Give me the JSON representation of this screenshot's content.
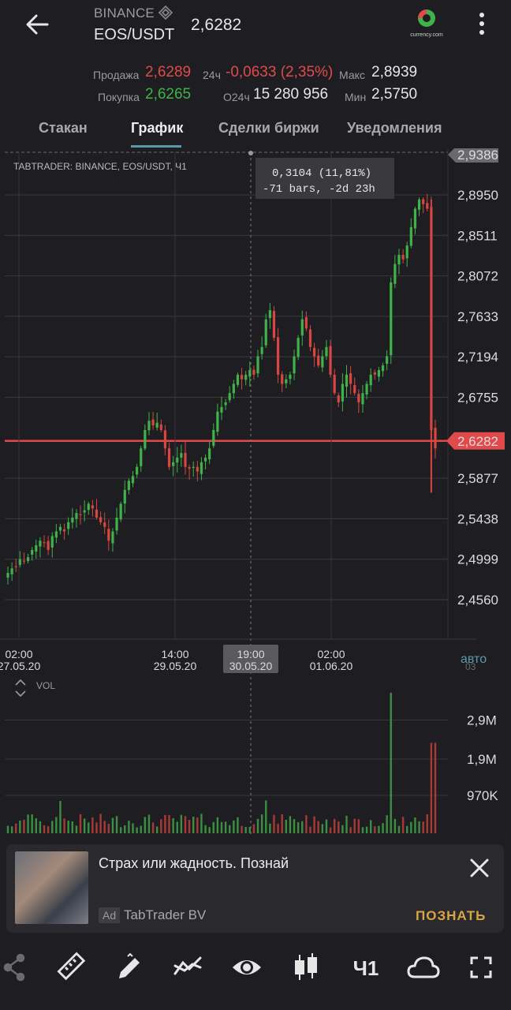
{
  "header": {
    "exchange": "BINANCE",
    "pair": "EOS/USDT",
    "price": "2,6282",
    "logo_text": "currency.com"
  },
  "stats": {
    "sell_label": "Продажа",
    "sell_value": "2,6289",
    "buy_label": "Покупка",
    "buy_value": "2,6265",
    "change_label": "24ч",
    "change_value": "-0,0633 (2,35%)",
    "volume_label": "О24ч",
    "volume_value": "15 280 956",
    "max_label": "Макс",
    "max_value": "2,8939",
    "min_label": "Мин",
    "min_value": "2,5750"
  },
  "tabs": [
    {
      "label": "Стакан"
    },
    {
      "label": "График"
    },
    {
      "label": "Сделки биржи"
    },
    {
      "label": "Уведомления"
    }
  ],
  "chart_data": {
    "type": "candlestick",
    "title": "TABTRADER: BINANCE, EOS/USDT, Ч1",
    "y_ticks": [
      "2,9386",
      "2,8950",
      "2,8511",
      "2,8072",
      "2,7633",
      "2,7194",
      "2,6755",
      "2,6282",
      "2,5877",
      "2,5438",
      "2,4999",
      "2,4560"
    ],
    "ylim": [
      2.43,
      2.94
    ],
    "current_price": "2,6282",
    "x_ticks": [
      {
        "time": "02:00",
        "date": "27.05.20"
      },
      {
        "time": "14:00",
        "date": "29.05.20"
      },
      {
        "time": "19:00",
        "date": "30.05.20"
      },
      {
        "time": "02:00",
        "date": "01.06.20"
      }
    ],
    "auto_label": "авто",
    "cut_label": "03",
    "measure_line1": "0,3104 (11,81%)",
    "measure_line2": "-71 bars, -2d 23h",
    "close_series": [
      2.485,
      2.49,
      2.492,
      2.5,
      2.498,
      2.502,
      2.51,
      2.515,
      2.52,
      2.518,
      2.51,
      2.525,
      2.53,
      2.535,
      2.53,
      2.54,
      2.545,
      2.55,
      2.548,
      2.553,
      2.56,
      2.555,
      2.545,
      2.54,
      2.535,
      2.52,
      2.53,
      2.545,
      2.56,
      2.575,
      2.585,
      2.59,
      2.6,
      2.62,
      2.64,
      2.65,
      2.645,
      2.648,
      2.64,
      2.62,
      2.6,
      2.605,
      2.61,
      2.615,
      2.6,
      2.598,
      2.6,
      2.595,
      2.605,
      2.61,
      2.62,
      2.64,
      2.66,
      2.665,
      2.67,
      2.68,
      2.69,
      2.7,
      2.695,
      2.7,
      2.705,
      2.7,
      2.72,
      2.73,
      2.76,
      2.77,
      2.74,
      2.7,
      2.69,
      2.695,
      2.7,
      2.72,
      2.74,
      2.76,
      2.75,
      2.73,
      2.72,
      2.71,
      2.72,
      2.73,
      2.7,
      2.68,
      2.67,
      2.69,
      2.7,
      2.69,
      2.68,
      2.67,
      2.68,
      2.69,
      2.7,
      2.7,
      2.705,
      2.71,
      2.72,
      2.8,
      2.82,
      2.83,
      2.825,
      2.84,
      2.86,
      2.88,
      2.89,
      2.885,
      2.88,
      2.64,
      2.62
    ],
    "volume_labels": [
      "2,9M",
      "1,9M",
      "970K"
    ],
    "volume_label": "VOL"
  },
  "ad": {
    "text": "Страх или жадность. Познай",
    "tag": "Ad",
    "company": "TabTrader BV",
    "cta": "ПОЗНАТЬ"
  },
  "bottom_icons": [
    "share-icon",
    "ruler-icon",
    "pencil-icon",
    "indicator-icon",
    "eye-icon",
    "candles-icon",
    "timeframe-icon",
    "cloud-icon",
    "fullscreen-icon"
  ],
  "timeframe": "Ч1"
}
